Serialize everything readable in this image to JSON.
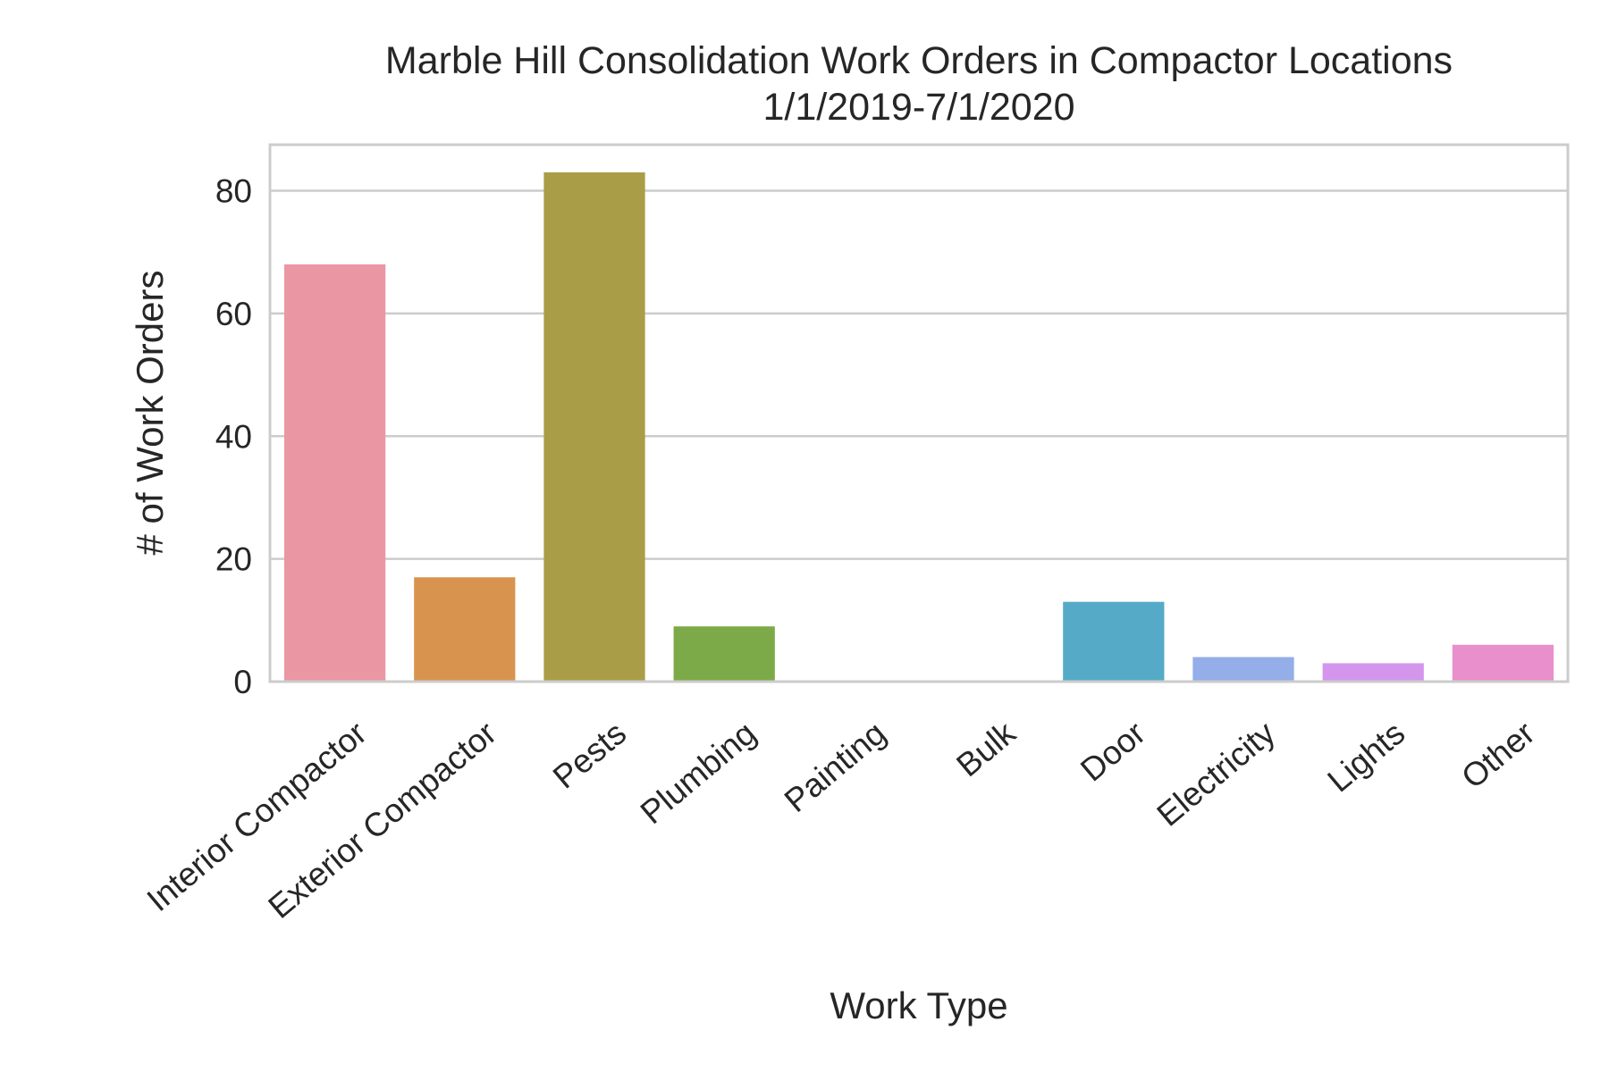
{
  "chart_data": {
    "type": "bar",
    "title": "Marble Hill Consolidation Work Orders in Compactor Locations",
    "subtitle": "1/1/2019-7/1/2020",
    "xlabel": "Work Type",
    "ylabel": "# of Work Orders",
    "categories": [
      "Interior Compactor",
      "Exterior Compactor",
      "Pests",
      "Plumbing",
      "Painting",
      "Bulk",
      "Door",
      "Electricity",
      "Lights",
      "Other"
    ],
    "values": [
      68,
      17,
      83,
      9,
      0,
      0,
      13,
      4,
      3,
      6
    ],
    "colors": [
      "#ea96a3",
      "#d8944f",
      "#a99d47",
      "#7daa48",
      "#50b17e",
      "#52ac9e",
      "#55abc7",
      "#93aee8",
      "#d396ec",
      "#e98fcb"
    ],
    "ylim": [
      0,
      87.5
    ],
    "yticks": [
      0,
      20,
      40,
      60,
      80
    ],
    "grid": true,
    "legend": "none"
  }
}
